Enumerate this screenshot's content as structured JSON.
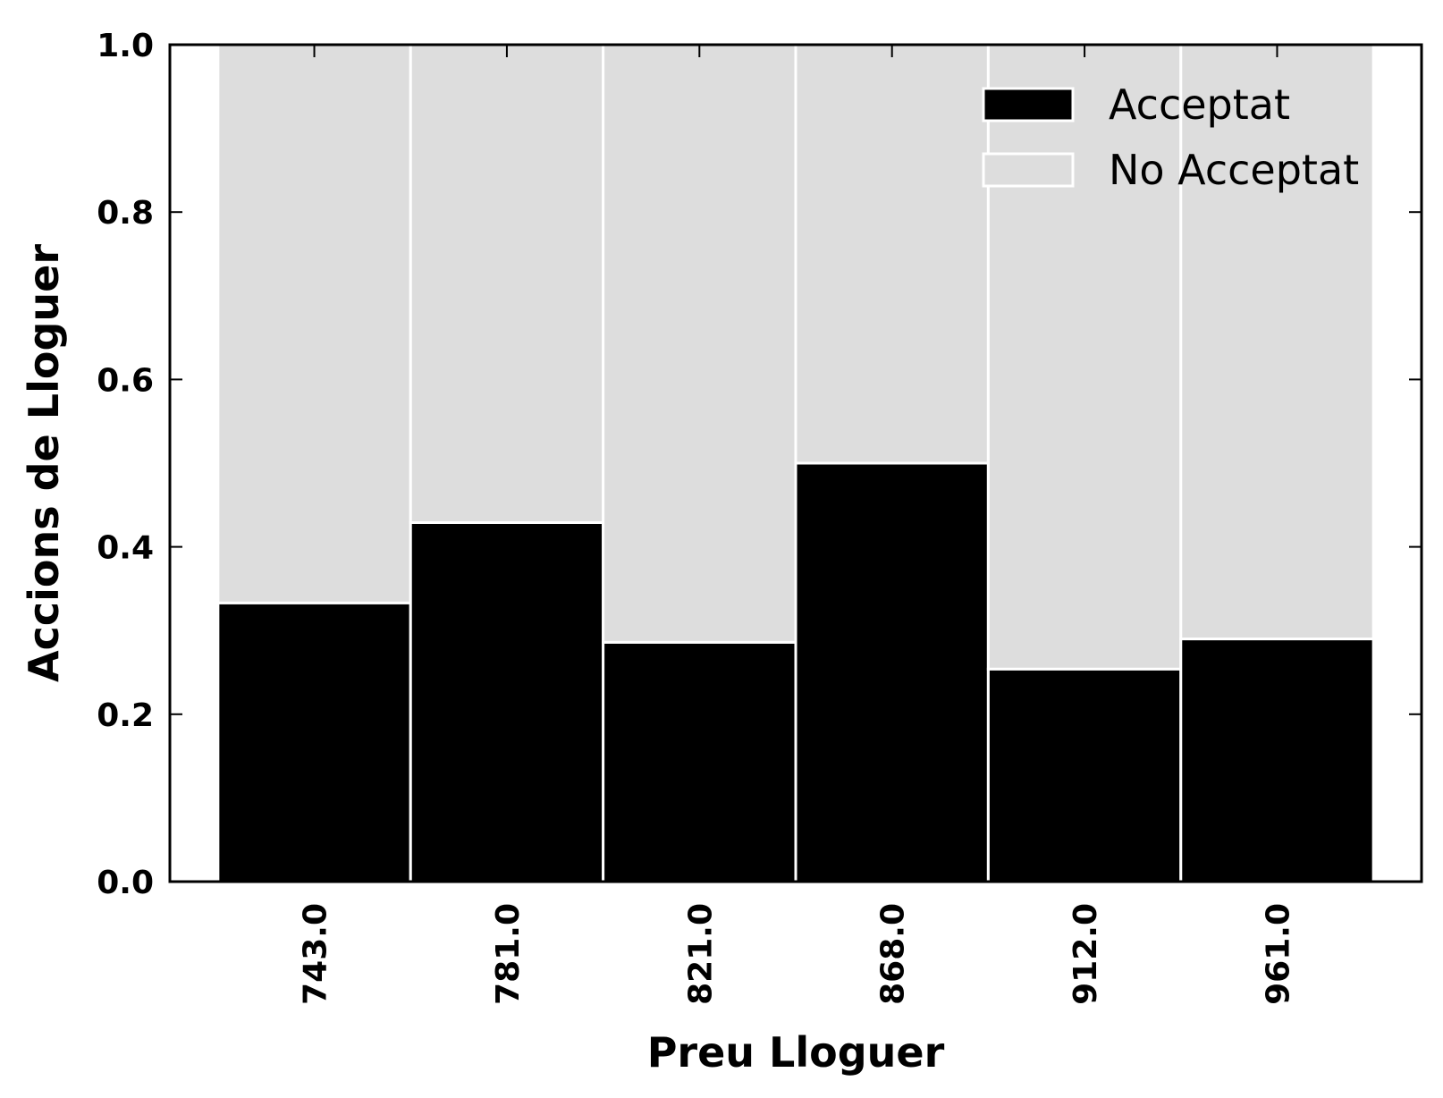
{
  "chart_data": {
    "type": "bar",
    "stacked": true,
    "categories": [
      "743.0",
      "781.0",
      "821.0",
      "868.0",
      "912.0",
      "961.0"
    ],
    "series": [
      {
        "name": "Acceptat",
        "values": [
          0.333,
          0.429,
          0.286,
          0.5,
          0.254,
          0.29
        ],
        "color": "#000000"
      },
      {
        "name": "No Acceptat",
        "values": [
          0.667,
          0.571,
          0.714,
          0.5,
          0.746,
          0.71
        ],
        "color": "#dddddd"
      }
    ],
    "title": "",
    "xlabel": "Preu Lloguer",
    "ylabel": "Accions de Lloguer",
    "ylim": [
      0,
      1.0
    ],
    "yticks": [
      "0.0",
      "0.2",
      "0.4",
      "0.6",
      "0.8",
      "1.0"
    ],
    "grid": false,
    "legend_position": "top-right"
  }
}
